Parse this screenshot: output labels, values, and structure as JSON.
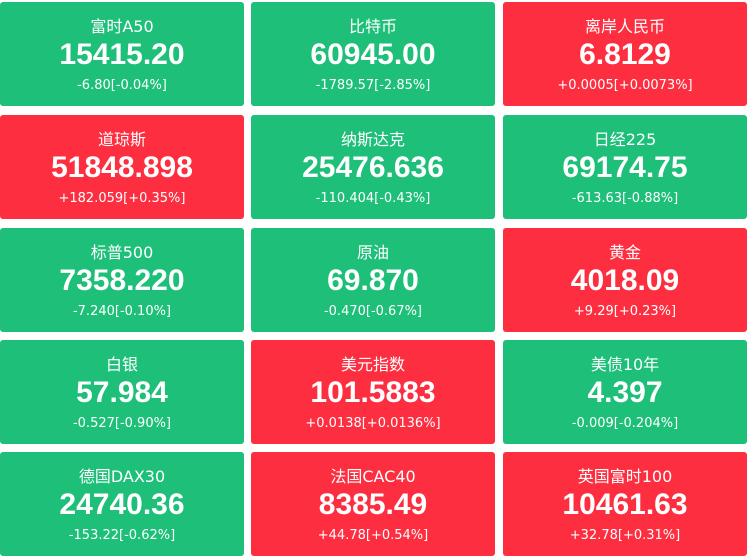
{
  "tiles": [
    {
      "name": "富时A50",
      "price": "15415.20",
      "change": "-6.80[-0.04%]",
      "color": "#1dbf79"
    },
    {
      "name": "比特币",
      "price": "60945.00",
      "change": "-1789.57[-2.85%]",
      "color": "#1dbf79"
    },
    {
      "name": "离岸人民币",
      "price": "6.8129",
      "change": "+0.0005[+0.0073%]",
      "color": "#fd2e40"
    },
    {
      "name": "道琼斯",
      "price": "51848.898",
      "change": "+182.059[+0.35%]",
      "color": "#fd2e40"
    },
    {
      "name": "纳斯达克",
      "price": "25476.636",
      "change": "-110.404[-0.43%]",
      "color": "#1dbf79"
    },
    {
      "name": "日经225",
      "price": "69174.75",
      "change": "-613.63[-0.88%]",
      "color": "#1dbf79"
    },
    {
      "name": "标普500",
      "price": "7358.220",
      "change": "-7.240[-0.10%]",
      "color": "#1dbf79"
    },
    {
      "name": "原油",
      "price": "69.870",
      "change": "-0.470[-0.67%]",
      "color": "#1dbf79"
    },
    {
      "name": "黄金",
      "price": "4018.09",
      "change": "+9.29[+0.23%]",
      "color": "#fd2e40"
    },
    {
      "name": "白银",
      "price": "57.984",
      "change": "-0.527[-0.90%]",
      "color": "#1dbf79"
    },
    {
      "name": "美元指数",
      "price": "101.5883",
      "change": "+0.0138[+0.0136%]",
      "color": "#fd2e40"
    },
    {
      "name": "美债10年",
      "price": "4.397",
      "change": "-0.009[-0.204%]",
      "color": "#1dbf79"
    },
    {
      "name": "德国DAX30",
      "price": "24740.36",
      "change": "-153.22[-0.62%]",
      "color": "#1dbf79"
    },
    {
      "name": "法国CAC40",
      "price": "8385.49",
      "change": "+44.78[+0.54%]",
      "color": "#fd2e40"
    },
    {
      "name": "英国富时100",
      "price": "10461.63",
      "change": "+32.78[+0.31%]",
      "color": "#fd2e40"
    }
  ]
}
